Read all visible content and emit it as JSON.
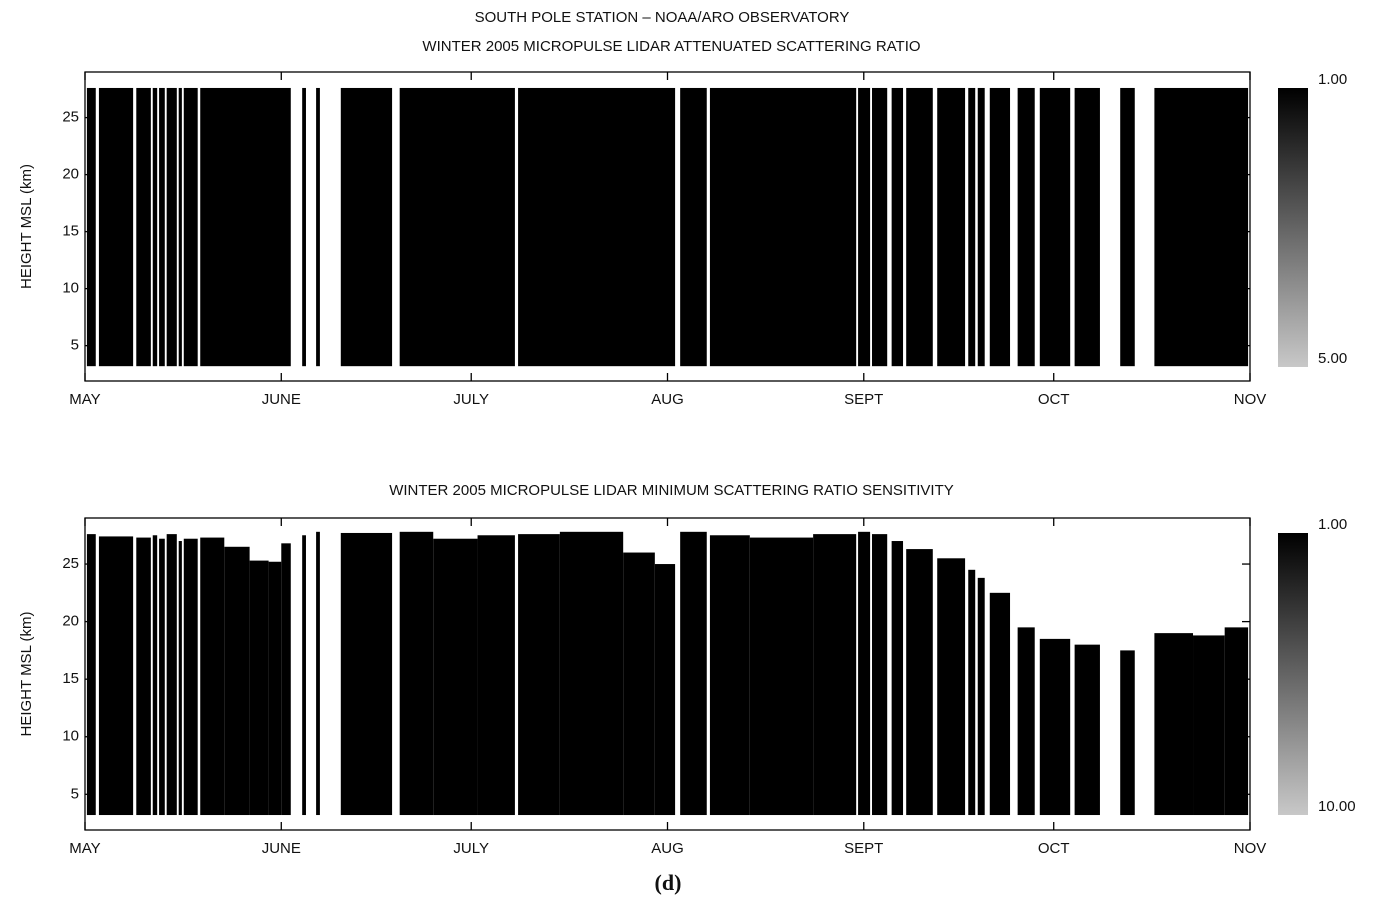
{
  "header": "SOUTH POLE STATION – NOAA/ARO OBSERVATORY",
  "caption": "(d)",
  "chart_data": [
    {
      "type": "bands",
      "title": "WINTER 2005 MICROPULSE LIDAR ATTENUATED SCATTERING RATIO",
      "ylabel": "HEIGHT MSL (km)",
      "color": "#000000",
      "base": 3.2,
      "xlim": [
        0,
        184
      ],
      "xticks": [
        {
          "value": 0,
          "label": "MAY"
        },
        {
          "value": 31,
          "label": "JUNE"
        },
        {
          "value": 61,
          "label": "JULY"
        },
        {
          "value": 92,
          "label": "AUG"
        },
        {
          "value": 123,
          "label": "SEPT"
        },
        {
          "value": 153,
          "label": "OCT"
        },
        {
          "value": 184,
          "label": "NOV"
        }
      ],
      "ylim": [
        1.9,
        29
      ],
      "yticks": [
        5,
        10,
        15,
        20,
        25
      ],
      "x": [
        0.3,
        2.2,
        8.1,
        10.7,
        11.7,
        12.9,
        14.8,
        15.6,
        18.2,
        34.3,
        36.5,
        40.4,
        49.7,
        68.4,
        94.0,
        98.7,
        122.1,
        124.3,
        127.4,
        129.7,
        134.6,
        139.5,
        141.0,
        142.9,
        147.3,
        150.8,
        156.3,
        163.5,
        168.9
      ],
      "x2": [
        1.7,
        7.6,
        10.4,
        11.4,
        12.6,
        14.5,
        15.3,
        17.8,
        32.5,
        34.9,
        37.1,
        48.5,
        67.9,
        93.2,
        98.2,
        121.8,
        124.0,
        126.7,
        129.2,
        133.9,
        139.0,
        140.6,
        142.1,
        146.1,
        150.0,
        155.6,
        160.3,
        165.8,
        183.7
      ],
      "values": [
        27.6,
        27.6,
        27.6,
        27.6,
        27.6,
        27.6,
        27.6,
        27.6,
        27.6,
        27.6,
        27.6,
        27.6,
        27.6,
        27.6,
        27.6,
        27.6,
        27.6,
        27.6,
        27.6,
        27.6,
        27.6,
        27.6,
        27.6,
        27.6,
        27.6,
        27.6,
        27.6,
        27.6,
        27.6
      ],
      "colorbar": {
        "colors": [
          "#000000",
          "#c8c8c8"
        ],
        "clim": [
          1,
          5
        ],
        "ticks": [
          {
            "value": 1,
            "label": "1.00"
          },
          {
            "value": 5,
            "label": "5.00"
          }
        ]
      }
    },
    {
      "type": "bands",
      "title": "WINTER 2005 MICROPULSE LIDAR MINIMUM SCATTERING RATIO SENSITIVITY",
      "ylabel": "HEIGHT MSL (km)",
      "color": "#000000",
      "base": 3.2,
      "xlim": [
        0,
        184
      ],
      "xticks": [
        {
          "value": 0,
          "label": "MAY"
        },
        {
          "value": 31,
          "label": "JUNE"
        },
        {
          "value": 61,
          "label": "JULY"
        },
        {
          "value": 92,
          "label": "AUG"
        },
        {
          "value": 123,
          "label": "SEPT"
        },
        {
          "value": 153,
          "label": "OCT"
        },
        {
          "value": 184,
          "label": "NOV"
        }
      ],
      "ylim": [
        1.9,
        29
      ],
      "yticks": [
        5,
        10,
        15,
        20,
        25
      ],
      "x": [
        0.3,
        2.2,
        8.1,
        10.7,
        11.7,
        12.9,
        14.8,
        15.6,
        18.2,
        22,
        26,
        29,
        31,
        34.3,
        36.5,
        40.4,
        49.7,
        55,
        62,
        68.4,
        75,
        85,
        90,
        94.0,
        98.7,
        105,
        115,
        122.1,
        124.3,
        127.4,
        129.7,
        134.6,
        139.5,
        141.0,
        142.9,
        147.3,
        150.8,
        156.3,
        163.5,
        168.9,
        175,
        180
      ],
      "x2": [
        1.7,
        7.6,
        10.4,
        11.4,
        12.6,
        14.5,
        15.3,
        17.8,
        22,
        26,
        29,
        31,
        32.5,
        34.9,
        37.1,
        48.5,
        55,
        62,
        67.9,
        75,
        85,
        90,
        93.2,
        98.2,
        105,
        115,
        121.8,
        124.0,
        126.7,
        129.2,
        133.9,
        139.0,
        140.6,
        142.1,
        146.1,
        150.0,
        155.6,
        160.3,
        165.8,
        175,
        180,
        183.7
      ],
      "values": [
        27.6,
        27.4,
        27.3,
        27.5,
        27.2,
        27.6,
        27.0,
        27.2,
        27.3,
        26.5,
        25.3,
        25.2,
        26.8,
        27.5,
        27.8,
        27.7,
        27.8,
        27.2,
        27.5,
        27.6,
        27.8,
        26.0,
        25.0,
        27.8,
        27.5,
        27.3,
        27.6,
        27.8,
        27.6,
        27.0,
        26.3,
        25.5,
        24.5,
        23.8,
        22.5,
        19.5,
        18.5,
        18.0,
        17.5,
        19.0,
        18.8,
        19.5
      ],
      "colorbar": {
        "colors": [
          "#000000",
          "#c8c8c8"
        ],
        "clim": [
          1,
          10
        ],
        "ticks": [
          {
            "value": 1,
            "label": "1.00"
          },
          {
            "value": 10,
            "label": "10.00"
          }
        ]
      }
    }
  ]
}
